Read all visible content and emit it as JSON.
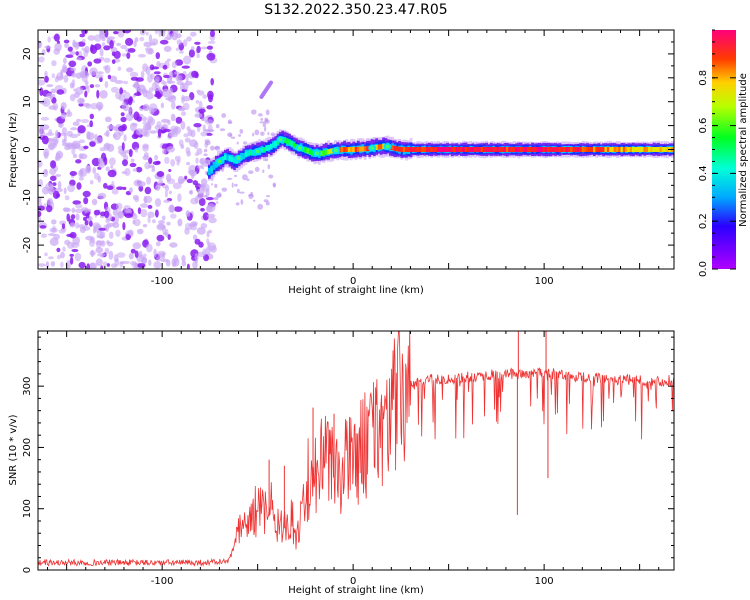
{
  "figure": {
    "title": "S132.2022.350.23.47.R05"
  },
  "chart_data": [
    {
      "type": "heatmap",
      "xlabel": "Height of straight line (km)",
      "ylabel": "Frequency (Hz)",
      "xlim": [
        -165,
        168
      ],
      "ylim": [
        -25,
        25
      ],
      "x_ticks": [
        -100,
        0,
        100
      ],
      "y_ticks": [
        -20,
        -10,
        0,
        10,
        20
      ],
      "colorbar": {
        "label": "Normalized spectral amplitude",
        "range": [
          0,
          1
        ],
        "ticks": [
          "0.0",
          "0.2",
          "0.4",
          "0.6",
          "0.8"
        ],
        "tick_values": [
          0.0,
          0.2,
          0.4,
          0.6,
          0.8
        ],
        "colormap": "gist_rainbow_r"
      },
      "noise_region_x": [
        -165,
        -73
      ],
      "signal_track": [
        {
          "x": -76,
          "f": -4.5,
          "a": 0.35
        },
        {
          "x": -72,
          "f": -3.0,
          "a": 0.4
        },
        {
          "x": -67,
          "f": -1.5,
          "a": 0.4
        },
        {
          "x": -62,
          "f": -2.5,
          "a": 0.35
        },
        {
          "x": -57,
          "f": -1.0,
          "a": 0.4
        },
        {
          "x": -52,
          "f": -0.5,
          "a": 0.45
        },
        {
          "x": -47,
          "f": 0.0,
          "a": 0.45
        },
        {
          "x": -42,
          "f": 1.0,
          "a": 0.45
        },
        {
          "x": -38,
          "f": 2.2,
          "a": 0.5
        },
        {
          "x": -34,
          "f": 1.5,
          "a": 0.5
        },
        {
          "x": -30,
          "f": 0.5,
          "a": 0.5
        },
        {
          "x": -26,
          "f": 0.0,
          "a": 0.55
        },
        {
          "x": -22,
          "f": -0.8,
          "a": 0.55
        },
        {
          "x": -17,
          "f": -0.8,
          "a": 0.6
        },
        {
          "x": -12,
          "f": -0.3,
          "a": 0.7
        },
        {
          "x": -6,
          "f": 0.0,
          "a": 0.85
        },
        {
          "x": 0,
          "f": 0.0,
          "a": 0.85
        },
        {
          "x": 8,
          "f": 0.2,
          "a": 0.85
        },
        {
          "x": 16,
          "f": 0.7,
          "a": 0.8
        },
        {
          "x": 24,
          "f": 0.0,
          "a": 0.9
        },
        {
          "x": 40,
          "f": 0.0,
          "a": 0.95
        },
        {
          "x": 60,
          "f": 0.0,
          "a": 0.95
        },
        {
          "x": 80,
          "f": 0.0,
          "a": 0.92
        },
        {
          "x": 100,
          "f": 0.0,
          "a": 0.95
        },
        {
          "x": 120,
          "f": 0.0,
          "a": 0.9
        },
        {
          "x": 140,
          "f": 0.0,
          "a": 0.8
        },
        {
          "x": 168,
          "f": 0.0,
          "a": 0.75
        }
      ],
      "isolated_feature": {
        "x": [
          -48,
          -43
        ],
        "f": [
          11,
          14
        ]
      }
    },
    {
      "type": "line",
      "xlabel": "Height of straight line (km)",
      "ylabel": "SNR (10 * v/v)",
      "xlim": [
        -165,
        168
      ],
      "ylim": [
        0,
        390
      ],
      "x_ticks": [
        -100,
        0,
        100
      ],
      "y_ticks": [
        0,
        100,
        200,
        300
      ],
      "color": "#ee3333",
      "envelope": {
        "x": [
          -165,
          -120,
          -80,
          -65,
          -60,
          -50,
          -40,
          -30,
          -25,
          -20,
          -15,
          -10,
          -5,
          0,
          10,
          20,
          25,
          30,
          40,
          50,
          60,
          70,
          80,
          90,
          100,
          110,
          120,
          130,
          140,
          150,
          160,
          168
        ],
        "y": [
          12,
          12,
          12,
          14,
          60,
          100,
          80,
          50,
          120,
          160,
          180,
          150,
          170,
          180,
          220,
          260,
          280,
          300,
          312,
          312,
          315,
          318,
          320,
          320,
          322,
          318,
          315,
          312,
          310,
          310,
          308,
          310
        ]
      },
      "spikes": [
        {
          "x": -44,
          "y": 180
        },
        {
          "x": -36,
          "y": 170
        },
        {
          "x": -21,
          "y": 265
        },
        {
          "x": -10,
          "y": 255
        },
        {
          "x": 86,
          "y": 90
        },
        {
          "x": 86.5,
          "y": 390
        },
        {
          "x": 102,
          "y": 150
        },
        {
          "x": 101,
          "y": 390
        }
      ]
    }
  ]
}
